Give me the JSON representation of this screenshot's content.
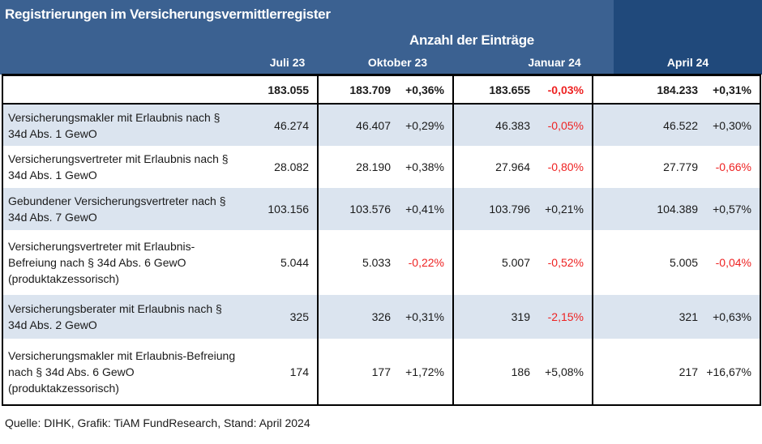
{
  "title": "Registrierungen im Versicherungsvermittlerregister",
  "subtitle": "Anzahl der Einträge",
  "columns": [
    "Juli 23",
    "Oktober 23",
    "Januar 24",
    "April 24"
  ],
  "total": {
    "juli": "183.055",
    "okt": "183.709",
    "okt_pct": "+0,36%",
    "jan": "183.655",
    "jan_pct": "-0,03%",
    "apr": "184.233",
    "apr_pct": "+0,31%"
  },
  "rows": [
    {
      "label": "Versicherungsmakler mit Erlaubnis nach § 34d Abs. 1 GewO",
      "juli": "46.274",
      "okt": "46.407",
      "okt_pct": "+0,29%",
      "jan": "46.383",
      "jan_pct": "-0,05%",
      "apr": "46.522",
      "apr_pct": "+0,30%"
    },
    {
      "label": "Versicherungsvertreter mit Erlaubnis nach § 34d Abs. 1 GewO",
      "juli": "28.082",
      "okt": "28.190",
      "okt_pct": "+0,38%",
      "jan": "27.964",
      "jan_pct": "-0,80%",
      "apr": "27.779",
      "apr_pct": "-0,66%"
    },
    {
      "label": "Gebundener Versicherungsvertreter nach § 34d Abs. 7 GewO",
      "juli": "103.156",
      "okt": "103.576",
      "okt_pct": "+0,41%",
      "jan": "103.796",
      "jan_pct": "+0,21%",
      "apr": "104.389",
      "apr_pct": "+0,57%"
    },
    {
      "label": "Versicherungsvertreter mit Erlaubnis-Befreiung nach § 34d Abs. 6 GewO (produktakzessorisch)",
      "juli": "5.044",
      "okt": "5.033",
      "okt_pct": "-0,22%",
      "jan": "5.007",
      "jan_pct": "-0,52%",
      "apr": "5.005",
      "apr_pct": "-0,04%"
    },
    {
      "label": "Versicherungsberater mit Erlaubnis nach § 34d Abs. 2 GewO",
      "juli": "325",
      "okt": "326",
      "okt_pct": "+0,31%",
      "jan": "319",
      "jan_pct": "-2,15%",
      "apr": "321",
      "apr_pct": "+0,63%"
    },
    {
      "label": "Versicherungsmakler mit Erlaubnis-Befreiung nach § 34d Abs. 6 GewO (produktakzessorisch)",
      "juli": "174",
      "okt": "177",
      "okt_pct": "+1,72%",
      "jan": "186",
      "jan_pct": "+5,08%",
      "apr": "217",
      "apr_pct": "+16,67%"
    }
  ],
  "source": "Quelle: DIHK, Grafik: TiAM FundResearch, Stand: April 2024",
  "colors": {
    "header": "#3b6191",
    "header_dark": "#20497b",
    "alt_row": "#dbe4ef",
    "negative": "#ee2222"
  }
}
